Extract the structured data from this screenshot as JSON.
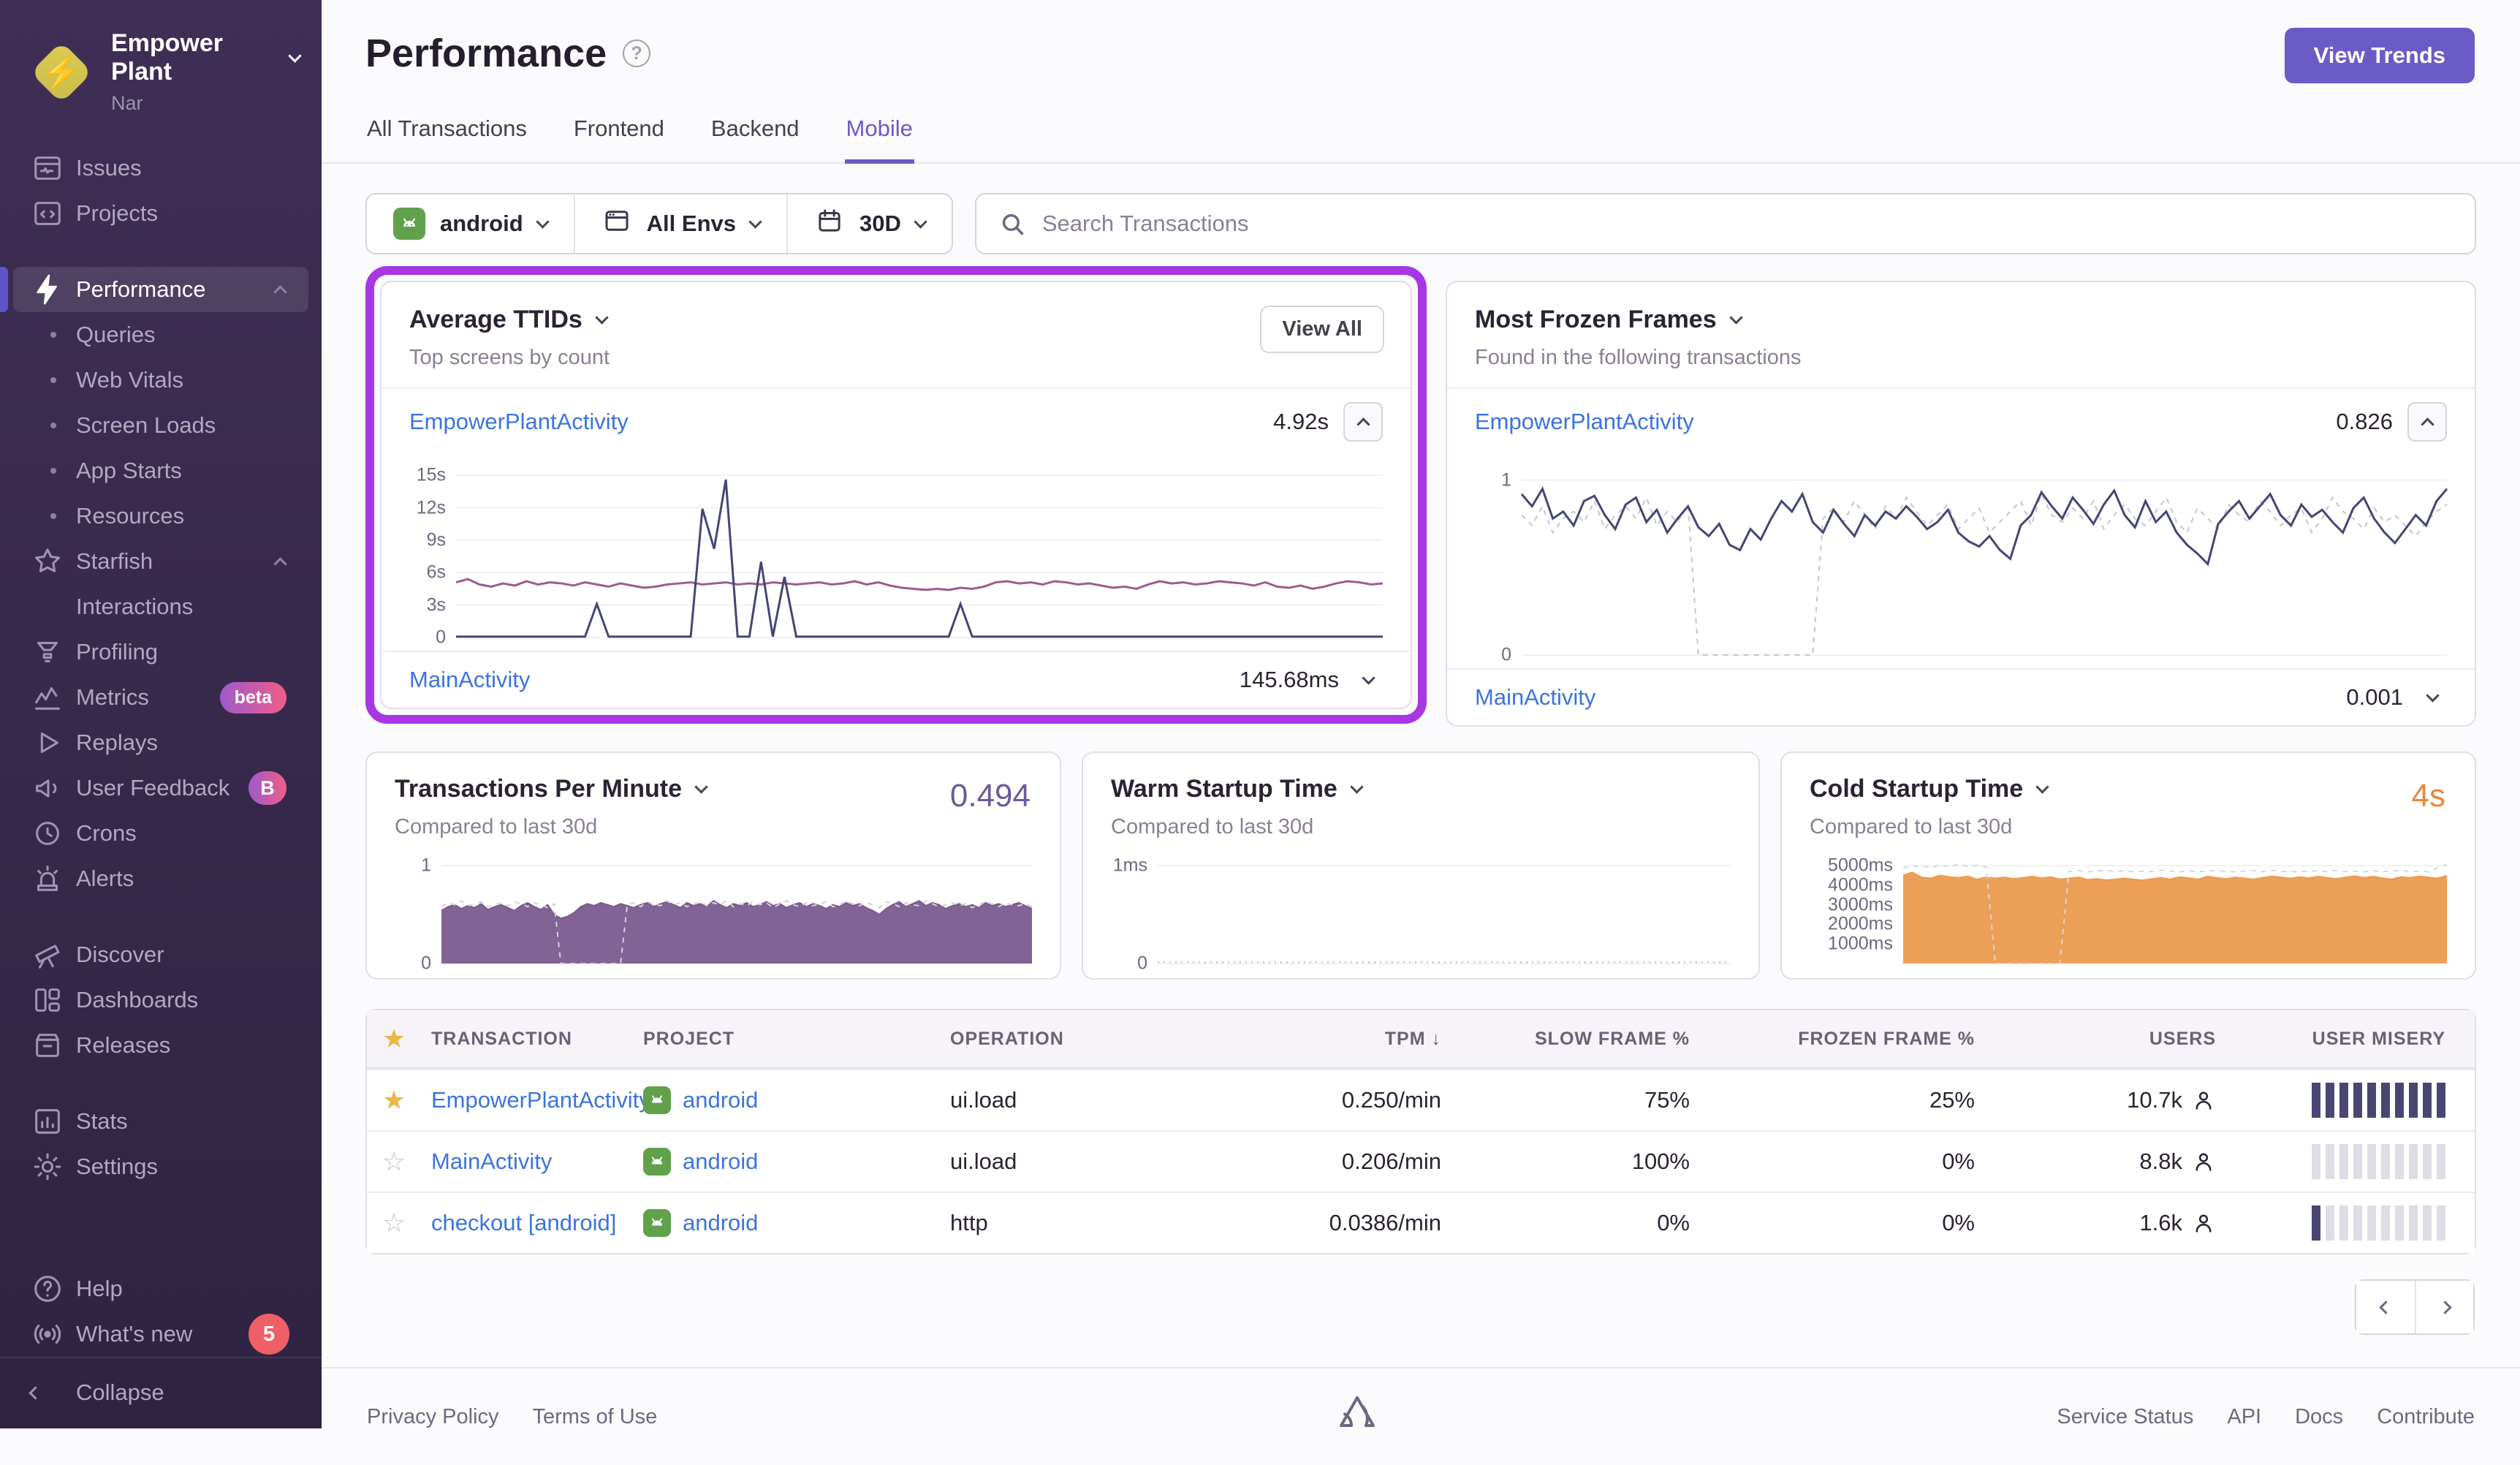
{
  "org": {
    "name": "Empower Plant",
    "subtitle": "Nar"
  },
  "sidebar": {
    "items": [
      {
        "label": "Issues"
      },
      {
        "label": "Projects"
      },
      {
        "label": "Performance"
      },
      {
        "label": "Queries"
      },
      {
        "label": "Web Vitals"
      },
      {
        "label": "Screen Loads"
      },
      {
        "label": "App Starts"
      },
      {
        "label": "Resources"
      },
      {
        "label": "Starfish"
      },
      {
        "label": "Interactions"
      },
      {
        "label": "Profiling"
      },
      {
        "label": "Metrics",
        "badge": "beta"
      },
      {
        "label": "Replays"
      },
      {
        "label": "User Feedback",
        "badge": "B"
      },
      {
        "label": "Crons"
      },
      {
        "label": "Alerts"
      },
      {
        "label": "Discover"
      },
      {
        "label": "Dashboards"
      },
      {
        "label": "Releases"
      },
      {
        "label": "Stats"
      },
      {
        "label": "Settings"
      },
      {
        "label": "Help"
      },
      {
        "label": "What's new",
        "badge": "5"
      },
      {
        "label": "Collapse"
      }
    ]
  },
  "header": {
    "title": "Performance",
    "help_glyph": "?",
    "view_trends": "View Trends",
    "tabs": [
      {
        "label": "All Transactions"
      },
      {
        "label": "Frontend"
      },
      {
        "label": "Backend"
      },
      {
        "label": "Mobile"
      }
    ]
  },
  "filters": {
    "project": "android",
    "environment": "All Envs",
    "date_range": "30D",
    "search_placeholder": "Search Transactions"
  },
  "panels": {
    "avg_ttids": {
      "title": "Average TTIDs",
      "subtitle": "Top screens by count",
      "view_all": "View All",
      "rows": [
        {
          "name": "EmpowerPlantActivity",
          "value": "4.92s"
        },
        {
          "name": "MainActivity",
          "value": "145.68ms"
        }
      ]
    },
    "frozen_frames": {
      "title": "Most Frozen Frames",
      "subtitle": "Found in the following transactions",
      "rows": [
        {
          "name": "EmpowerPlantActivity",
          "value": "0.826"
        },
        {
          "name": "MainActivity",
          "value": "0.001"
        }
      ]
    },
    "tpm": {
      "title": "Transactions Per Minute",
      "subtitle": "Compared to last 30d",
      "value": "0.494"
    },
    "warm": {
      "title": "Warm Startup Time",
      "subtitle": "Compared to last 30d"
    },
    "cold": {
      "title": "Cold Startup Time",
      "subtitle": "Compared to last 30d",
      "value": "4s"
    }
  },
  "table": {
    "columns": {
      "transaction": "Transaction",
      "project": "Project",
      "operation": "Operation",
      "tpm": "TPM",
      "slow": "Slow Frame %",
      "frozen": "Frozen Frame %",
      "users": "Users",
      "misery": "User Misery"
    },
    "sort_indicator": "↓",
    "rows": [
      {
        "starred": true,
        "transaction": "EmpowerPlantActivity",
        "project": "android",
        "operation": "ui.load",
        "tpm": "0.250/min",
        "slow": "75%",
        "frozen": "25%",
        "users": "10.7k",
        "misery": {
          "filled": 10,
          "total": 10
        }
      },
      {
        "starred": false,
        "transaction": "MainActivity",
        "project": "android",
        "operation": "ui.load",
        "tpm": "0.206/min",
        "slow": "100%",
        "frozen": "0%",
        "users": "8.8k",
        "misery": {
          "filled": 0,
          "total": 10
        }
      },
      {
        "starred": false,
        "transaction": "checkout [android]",
        "project": "android",
        "operation": "http",
        "tpm": "0.0386/min",
        "slow": "0%",
        "frozen": "0%",
        "users": "1.6k",
        "misery": {
          "filled": 1,
          "total": 10
        }
      }
    ]
  },
  "footer": {
    "left": [
      "Privacy Policy",
      "Terms of Use"
    ],
    "right": [
      "Service Status",
      "API",
      "Docs",
      "Contribute"
    ]
  },
  "icons": {
    "star_filled": "★",
    "star_empty": "☆"
  },
  "colors": {
    "accent_purple": "#6a5bc6",
    "highlight": "#a737e3",
    "navy_series": "#444674",
    "plum_series": "#9d5b92",
    "tpm_fill": "#7a5b8f",
    "cold_fill": "#eb9a4e",
    "link_blue": "#3c74dd",
    "star_gold": "#e9b949",
    "badge_red": "#ee6066"
  },
  "chart_data": {
    "avg_ttids": {
      "type": "line",
      "ylim": [
        0,
        16.5
      ],
      "yticks": [
        {
          "v": 0,
          "l": "0"
        },
        {
          "v": 3,
          "l": "3s"
        },
        {
          "v": 6,
          "l": "6s"
        },
        {
          "v": 9,
          "l": "9s"
        },
        {
          "v": 12,
          "l": "12s"
        },
        {
          "v": 15,
          "l": "15s"
        }
      ],
      "series": [
        {
          "name": "EmpowerPlantActivity",
          "color": "#9d5b92",
          "style": "solid",
          "kind": "line",
          "width": 3,
          "values": [
            5.1,
            5.4,
            4.9,
            4.7,
            5.0,
            4.8,
            5.2,
            4.9,
            5.1,
            5.0,
            4.8,
            5.1,
            4.9,
            4.7,
            5.0,
            4.8,
            4.6,
            4.7,
            4.9,
            5.0,
            5.1,
            4.9,
            5.0,
            5.1,
            4.9,
            5.0,
            4.9,
            5.1,
            5.0,
            4.9,
            5.0,
            5.1,
            4.9,
            5.0,
            5.2,
            4.9,
            5.1,
            4.8,
            4.6,
            4.5,
            4.4,
            4.5,
            4.4,
            4.6,
            4.5,
            4.7,
            5.1,
            5.2,
            5.0,
            5.1,
            4.9,
            5.2,
            5.1,
            4.9,
            5.0,
            4.8,
            4.6,
            4.7,
            4.5,
            4.9,
            5.2,
            5.0,
            5.1,
            4.9,
            5.0,
            5.2,
            5.1,
            5.0,
            4.8,
            5.1,
            4.7,
            4.6,
            4.8,
            4.5,
            4.7,
            5.0,
            5.2,
            5.1,
            4.9,
            5.0
          ]
        },
        {
          "name": "MainActivity",
          "color": "#444674",
          "style": "solid",
          "kind": "line",
          "width": 3,
          "values": [
            0.08,
            0.08,
            0.08,
            0.08,
            0.08,
            0.08,
            0.08,
            0.08,
            0.08,
            0.08,
            0.08,
            0.08,
            3.1,
            0.08,
            0.08,
            0.08,
            0.08,
            0.08,
            0.08,
            0.08,
            0.08,
            11.9,
            8.2,
            14.6,
            0.08,
            0.08,
            7.0,
            0.08,
            5.6,
            0.08,
            0.08,
            0.08,
            0.08,
            0.08,
            0.08,
            0.08,
            0.08,
            0.08,
            0.08,
            0.08,
            0.08,
            0.08,
            0.08,
            3.1,
            0.08,
            0.08,
            0.08,
            0.08,
            0.08,
            0.08,
            0.08,
            0.08,
            0.08,
            0.08,
            0.08,
            0.08,
            0.08,
            0.08,
            0.08,
            0.08,
            0.08,
            0.08,
            0.08,
            0.08,
            0.08,
            0.08,
            0.08,
            0.08,
            0.08,
            0.08,
            0.08,
            0.08,
            0.08,
            0.08,
            0.08,
            0.08,
            0.08,
            0.08,
            0.08,
            0.08
          ]
        }
      ]
    },
    "frozen_frames": {
      "type": "line",
      "ylim": [
        0,
        1.12
      ],
      "yticks": [
        {
          "v": 1,
          "l": "1"
        },
        {
          "v": 0,
          "l": "0"
        }
      ],
      "series": [
        {
          "name": "previous period",
          "color": "#c8c3d1",
          "style": "dashed",
          "kind": "line",
          "width": 2,
          "values": [
            0.8,
            0.74,
            0.85,
            0.7,
            0.78,
            0.82,
            0.76,
            0.88,
            0.72,
            0.8,
            0.85,
            0.78,
            0.9,
            0.74,
            0.82,
            0.76,
            0.86,
            0,
            0,
            0,
            0,
            0,
            0,
            0,
            0,
            0,
            0,
            0,
            0,
            0.78,
            0.84,
            0.76,
            0.88,
            0.8,
            0.72,
            0.85,
            0.78,
            0.9,
            0.82,
            0.74,
            0.8,
            0.86,
            0.72,
            0.78,
            0.84,
            0.7,
            0.76,
            0.82,
            0.88,
            0.74,
            0.92,
            0.8,
            0.76,
            0.84,
            0.78,
            0.88,
            0.72,
            0.8,
            0.86,
            0.78,
            0.74,
            0.82,
            0.9,
            0.76,
            0.7,
            0.84,
            0.78,
            0.72,
            0.86,
            0.8,
            0.76,
            0.88,
            0.82,
            0.74,
            0.8,
            0.84,
            0.7,
            0.78,
            0.9,
            0.82,
            0.78,
            0.72,
            0.84,
            0.76,
            0.8,
            0.74,
            0.68,
            0.76,
            0.82,
            0.86
          ]
        },
        {
          "name": "EmpowerPlantActivity",
          "color": "#444674",
          "style": "solid",
          "kind": "line",
          "width": 3,
          "values": [
            0.92,
            0.85,
            0.95,
            0.78,
            0.82,
            0.74,
            0.88,
            0.91,
            0.8,
            0.72,
            0.86,
            0.9,
            0.76,
            0.83,
            0.7,
            0.78,
            0.85,
            0.73,
            0.68,
            0.75,
            0.63,
            0.6,
            0.72,
            0.66,
            0.78,
            0.88,
            0.82,
            0.92,
            0.76,
            0.7,
            0.83,
            0.75,
            0.68,
            0.8,
            0.74,
            0.82,
            0.78,
            0.85,
            0.79,
            0.72,
            0.76,
            0.83,
            0.7,
            0.65,
            0.62,
            0.68,
            0.6,
            0.55,
            0.74,
            0.8,
            0.93,
            0.85,
            0.78,
            0.9,
            0.83,
            0.75,
            0.86,
            0.94,
            0.8,
            0.73,
            0.88,
            0.76,
            0.82,
            0.7,
            0.63,
            0.58,
            0.52,
            0.75,
            0.82,
            0.88,
            0.78,
            0.85,
            0.92,
            0.8,
            0.74,
            0.86,
            0.79,
            0.83,
            0.76,
            0.7,
            0.84,
            0.9,
            0.78,
            0.7,
            0.64,
            0.72,
            0.8,
            0.74,
            0.88,
            0.95
          ]
        }
      ]
    },
    "tpm": {
      "type": "area",
      "ylim": [
        0,
        1.12
      ],
      "yticks": [
        {
          "v": 1,
          "l": "1"
        },
        {
          "v": 0,
          "l": "0"
        }
      ],
      "series": [
        {
          "name": "current",
          "color": "#7a5b8f",
          "style": "solid",
          "kind": "area",
          "fill_opacity": 0.95,
          "width": 2,
          "values": [
            0.54,
            0.58,
            0.6,
            0.56,
            0.59,
            0.57,
            0.61,
            0.55,
            0.58,
            0.6,
            0.57,
            0.54,
            0.59,
            0.62,
            0.58,
            0.55,
            0.6,
            0.5,
            0.46,
            0.48,
            0.52,
            0.58,
            0.61,
            0.59,
            0.62,
            0.6,
            0.58,
            0.61,
            0.59,
            0.57,
            0.6,
            0.62,
            0.58,
            0.61,
            0.63,
            0.6,
            0.57,
            0.62,
            0.59,
            0.61,
            0.58,
            0.64,
            0.6,
            0.57,
            0.61,
            0.59,
            0.62,
            0.58,
            0.6,
            0.63,
            0.59,
            0.61,
            0.57,
            0.6,
            0.62,
            0.58,
            0.61,
            0.59,
            0.56,
            0.6,
            0.58,
            0.62,
            0.59,
            0.61,
            0.57,
            0.54,
            0.5,
            0.56,
            0.6,
            0.63,
            0.58,
            0.61,
            0.64,
            0.59,
            0.62,
            0.6,
            0.56,
            0.59,
            0.61,
            0.58,
            0.6,
            0.57,
            0.62,
            0.59,
            0.61,
            0.58,
            0.6,
            0.62,
            0.59,
            0.56
          ]
        },
        {
          "name": "previous period",
          "color": "#d5d1dc",
          "style": "dashed",
          "kind": "line",
          "width": 2,
          "values": [
            0.58,
            0.62,
            0.6,
            0.64,
            0.59,
            0.61,
            0.63,
            0.58,
            0.6,
            0.62,
            0.59,
            0.63,
            0.61,
            0.58,
            0.62,
            0.6,
            0.57,
            0.61,
            0,
            0,
            0,
            0,
            0,
            0,
            0,
            0,
            0,
            0,
            0.6,
            0.62,
            0.58,
            0.63,
            0.61,
            0.59,
            0.64,
            0.6,
            0.62,
            0.58,
            0.61,
            0.63,
            0.59,
            0.62,
            0.6,
            0.64,
            0.58,
            0.61,
            0.59,
            0.63,
            0.6,
            0.62,
            0.57,
            0.61,
            0.64,
            0.6,
            0.58,
            0.62,
            0.59,
            0.61,
            0.63,
            0.58,
            0.6,
            0.64,
            0.61,
            0.59,
            0.62,
            0.6,
            0.57,
            0.63,
            0.61,
            0.58,
            0.62,
            0.6,
            0.59,
            0.64,
            0.61,
            0.58,
            0.6,
            0.62,
            0.59,
            0.61,
            0.57,
            0.6,
            0.63,
            0.61,
            0.58,
            0.62,
            0.6,
            0.59,
            0.61,
            0.58
          ]
        }
      ]
    },
    "warm_startup": {
      "type": "line",
      "ylim": [
        0,
        1.12
      ],
      "yticks": [
        {
          "v": 1,
          "l": "1ms"
        },
        {
          "v": 0,
          "l": "0"
        }
      ],
      "series": [
        {
          "name": "current",
          "color": "#cfcad7",
          "style": "dotted",
          "kind": "line",
          "width": 3,
          "values": [
            0.012,
            0.012
          ]
        }
      ]
    },
    "cold_startup": {
      "type": "area",
      "ylim": [
        0,
        5600
      ],
      "yticks": [
        {
          "v": 5000,
          "l": "5000ms"
        },
        {
          "v": 4000,
          "l": "4000ms",
          "line": false
        },
        {
          "v": 3000,
          "l": "3000ms",
          "line": false
        },
        {
          "v": 2000,
          "l": "2000ms",
          "line": false
        },
        {
          "v": 1000,
          "l": "1000ms",
          "line": false
        }
      ],
      "series": [
        {
          "name": "current",
          "color": "#eb9a4e",
          "style": "solid",
          "kind": "area",
          "fill_opacity": 0.95,
          "width": 2,
          "values": [
            4500,
            4650,
            4400,
            4350,
            4500,
            4420,
            4380,
            4450,
            4300,
            4400,
            4350,
            4400,
            4320,
            4380,
            4440,
            4360,
            4420,
            4300,
            4350,
            4400,
            4280,
            4320,
            4260,
            4300,
            4350,
            4300,
            4250,
            4320,
            4380,
            4300,
            4420,
            4360,
            4300,
            4440,
            4380,
            4320,
            4400,
            4350,
            4300,
            4380,
            4450,
            4400,
            4340,
            4420,
            4360,
            4440,
            4380,
            4320,
            4400,
            4460,
            4380,
            4440,
            4360,
            4300,
            4420,
            4380,
            4450,
            4400,
            4350,
            4480
          ]
        },
        {
          "name": "previous period",
          "color": "#d9d5de",
          "style": "dashed",
          "kind": "line",
          "width": 2,
          "values": [
            4900,
            4950,
            5000,
            4880,
            5050,
            4920,
            5080,
            4960,
            5000,
            4940,
            0,
            0,
            0,
            0,
            0,
            0,
            0,
            0,
            4700,
            4750,
            4680,
            4720,
            4760,
            4700,
            4740,
            4680,
            4720,
            4700,
            4760,
            4720,
            4680,
            4740,
            4700,
            4720,
            4760,
            4700,
            4680,
            4720,
            4740,
            4700,
            4760,
            4720,
            4700,
            4680,
            4740,
            4720,
            4700,
            4760,
            4700,
            4720,
            4680,
            4740,
            4700,
            4720,
            4760,
            4700,
            4720,
            4680,
            4900,
            5050
          ]
        }
      ]
    }
  }
}
